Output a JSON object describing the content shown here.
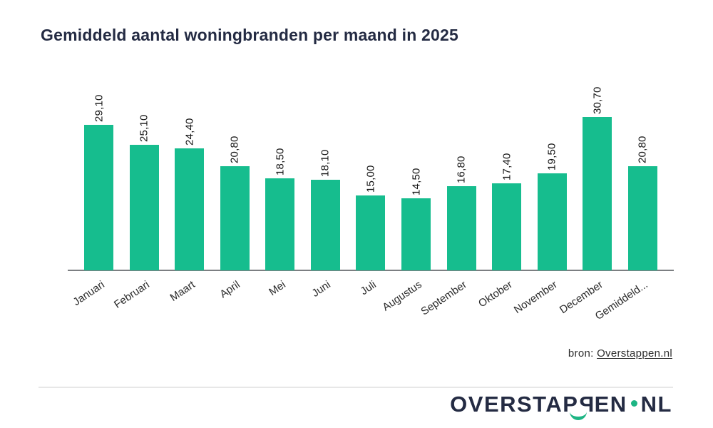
{
  "title": "Gemiddeld aantal woningbranden per maand in 2025",
  "chart_data": {
    "type": "bar",
    "title": "Gemiddeld aantal woningbranden per maand in 2025",
    "categories": [
      "Januari",
      "Februari",
      "Maart",
      "April",
      "Mei",
      "Juni",
      "Juli",
      "Augustus",
      "September",
      "Oktober",
      "November",
      "December",
      "Gemiddeld..."
    ],
    "values": [
      29.1,
      25.1,
      24.4,
      20.8,
      18.5,
      18.1,
      15.0,
      14.5,
      16.8,
      17.4,
      19.5,
      30.7,
      20.8
    ],
    "value_labels": [
      "29,10",
      "25,10",
      "24,40",
      "20,80",
      "18,50",
      "18,10",
      "15,00",
      "14,50",
      "16,80",
      "17,40",
      "19,50",
      "30,70",
      "20,80"
    ],
    "xlabel": "",
    "ylabel": "",
    "ylim": [
      0,
      32
    ],
    "grid": false,
    "legend": false,
    "bar_color": "#16bd8e",
    "value_label_rotation_deg": 90,
    "category_label_rotation_deg": -34
  },
  "source": {
    "prefix": "bron: ",
    "link_text": "Overstappen.nl"
  },
  "logo": {
    "part1": "OVERSTA",
    "p_normal": "P",
    "p_reversed": "P",
    "part2": "EN",
    "part3": "NL"
  },
  "colors": {
    "bar_green": "#16bd8e",
    "logo_green": "#1db584",
    "navy": "#242b43",
    "axis_gray": "#7c7f82",
    "divider_gray": "#e7e7e7",
    "label_dark": "#141414",
    "tick_dark": "#2a2a2a",
    "source_dark": "#2d2d2d"
  }
}
